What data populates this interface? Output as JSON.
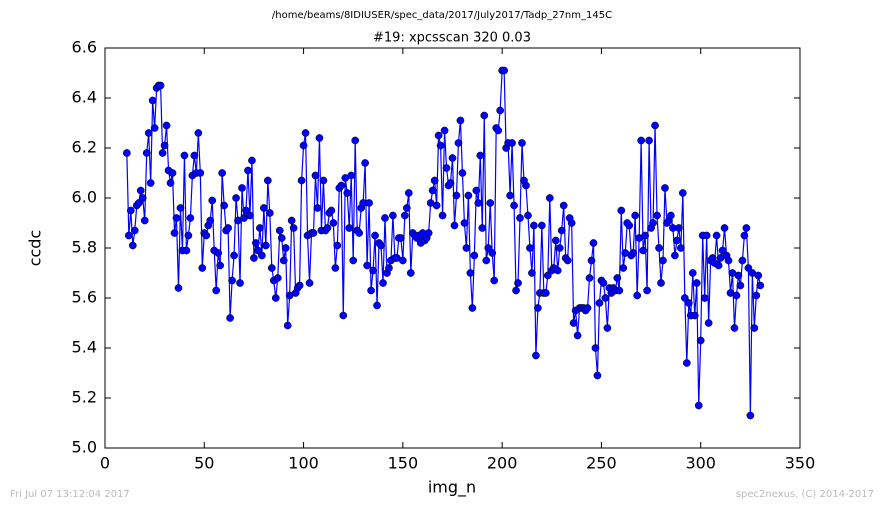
{
  "chart_data": {
    "type": "line",
    "path_title": "/home/beams/8IDIUSER/spec_data/2017/July2017/Tadp_27nm_145C",
    "title": "#19: xpcsscan 320 0.03",
    "xlabel": "img_n",
    "ylabel": "ccdc",
    "footer_left": "Fri Jul 07 13:12:04 2017",
    "footer_right": "spec2nexus, (C) 2014-2017",
    "xlim": [
      0,
      350
    ],
    "xticks": [
      0,
      50,
      100,
      150,
      200,
      250,
      300,
      350
    ],
    "ylim": [
      5.0,
      6.6
    ],
    "yticks": [
      {
        "value": 5.0,
        "label": "5.0"
      },
      5.2,
      5.4,
      5.6,
      5.8,
      {
        "value": 6.0,
        "label": "6.0"
      },
      6.2,
      6.4,
      6.6
    ],
    "series": [
      {
        "color": "#0000ff",
        "x": [
          11,
          12,
          13,
          14,
          15,
          16,
          17,
          18,
          19,
          20,
          21,
          22,
          23,
          24,
          25,
          26,
          27,
          28,
          29,
          30,
          31,
          32,
          33,
          34,
          35,
          36,
          37,
          38,
          39,
          40,
          41,
          42,
          43,
          44,
          45,
          46,
          47,
          48,
          49,
          50,
          51,
          52,
          53,
          54,
          55,
          56,
          57,
          58,
          59,
          60,
          61,
          62,
          63,
          64,
          65,
          66,
          67,
          68,
          69,
          70,
          71,
          72,
          73,
          74,
          75,
          76,
          77,
          78,
          79,
          80,
          81,
          82,
          83,
          84,
          85,
          86,
          87,
          88,
          89,
          90,
          91,
          92,
          93,
          94,
          95,
          96,
          97,
          98,
          99,
          100,
          101,
          102,
          103,
          104,
          105,
          106,
          107,
          108,
          109,
          110,
          111,
          112,
          113,
          114,
          115,
          116,
          117,
          118,
          119,
          120,
          121,
          122,
          123,
          124,
          125,
          126,
          127,
          128,
          129,
          130,
          131,
          132,
          133,
          134,
          135,
          136,
          137,
          138,
          139,
          140,
          141,
          142,
          143,
          144,
          145,
          146,
          147,
          148,
          149,
          150,
          151,
          152,
          153,
          154,
          155,
          156,
          157,
          158,
          159,
          160,
          161,
          162,
          163,
          164,
          165,
          166,
          167,
          168,
          169,
          170,
          171,
          172,
          173,
          174,
          175,
          176,
          177,
          178,
          179,
          180,
          181,
          182,
          183,
          184,
          185,
          186,
          187,
          188,
          189,
          190,
          191,
          192,
          193,
          194,
          195,
          196,
          197,
          198,
          199,
          200,
          201,
          202,
          203,
          204,
          205,
          206,
          207,
          208,
          209,
          210,
          211,
          212,
          213,
          214,
          215,
          216,
          217,
          218,
          219,
          220,
          221,
          222,
          223,
          224,
          225,
          226,
          227,
          228,
          229,
          230,
          231,
          232,
          233,
          234,
          235,
          236,
          237,
          238,
          239,
          240,
          241,
          242,
          243,
          244,
          245,
          246,
          247,
          248,
          249,
          250,
          251,
          252,
          253,
          254,
          255,
          256,
          257,
          258,
          259,
          260,
          261,
          262,
          263,
          264,
          265,
          266,
          267,
          268,
          269,
          270,
          271,
          272,
          273,
          274,
          275,
          276,
          277,
          278,
          279,
          280,
          281,
          282,
          283,
          284,
          285,
          286,
          287,
          288,
          289,
          290,
          291,
          292,
          293,
          294,
          295,
          296,
          297,
          298,
          299,
          300,
          301,
          302,
          303,
          304,
          305,
          306,
          307,
          308,
          309,
          310,
          311,
          312,
          313,
          314,
          315,
          316,
          317,
          318,
          319,
          320,
          321,
          322,
          323,
          324,
          325,
          326,
          327,
          328,
          329,
          330
        ],
        "values": [
          6.18,
          5.85,
          5.95,
          5.81,
          5.87,
          5.97,
          5.98,
          6.03,
          6.0,
          5.91,
          6.18,
          6.26,
          6.06,
          6.39,
          6.28,
          6.44,
          6.45,
          6.45,
          6.18,
          6.21,
          6.29,
          6.11,
          6.06,
          6.1,
          5.86,
          5.92,
          5.64,
          5.96,
          5.79,
          6.17,
          5.79,
          5.85,
          5.92,
          6.09,
          6.17,
          6.1,
          6.26,
          6.1,
          5.72,
          5.86,
          5.85,
          5.89,
          5.91,
          5.99,
          5.79,
          5.63,
          5.78,
          5.73,
          6.1,
          5.97,
          5.87,
          5.88,
          5.52,
          5.67,
          5.77,
          6.0,
          5.91,
          5.66,
          6.04,
          5.92,
          5.95,
          6.11,
          5.93,
          6.15,
          5.76,
          5.82,
          5.79,
          5.88,
          5.77,
          5.96,
          5.81,
          6.07,
          5.94,
          5.72,
          5.67,
          5.6,
          5.68,
          5.87,
          5.84,
          5.75,
          5.8,
          5.49,
          5.61,
          5.91,
          5.88,
          5.62,
          5.64,
          5.65,
          6.07,
          6.21,
          6.26,
          5.85,
          5.66,
          5.86,
          5.86,
          6.09,
          5.96,
          6.24,
          5.87,
          6.07,
          5.87,
          5.88,
          5.94,
          5.95,
          5.9,
          5.72,
          5.81,
          6.04,
          6.05,
          5.53,
          6.08,
          6.02,
          5.88,
          6.09,
          5.75,
          6.23,
          5.87,
          5.86,
          5.96,
          5.98,
          6.14,
          5.73,
          5.98,
          5.63,
          5.71,
          5.85,
          5.57,
          5.82,
          5.81,
          5.66,
          5.92,
          5.7,
          5.72,
          5.75,
          5.93,
          5.76,
          5.76,
          5.84,
          5.84,
          5.75,
          5.93,
          5.96,
          6.02,
          5.7,
          5.86,
          5.85,
          5.84,
          5.85,
          5.82,
          5.86,
          5.83,
          5.84,
          5.86,
          5.98,
          6.03,
          6.07,
          5.97,
          6.25,
          6.21,
          5.93,
          6.27,
          6.12,
          6.05,
          6.06,
          6.16,
          5.89,
          6.01,
          6.22,
          6.31,
          6.1,
          5.9,
          5.8,
          6.01,
          5.7,
          5.56,
          5.77,
          6.03,
          5.98,
          6.17,
          5.88,
          6.33,
          5.75,
          5.8,
          5.98,
          5.78,
          5.67,
          6.28,
          6.27,
          6.35,
          6.51,
          6.51,
          6.2,
          6.22,
          6.01,
          6.22,
          5.97,
          5.63,
          5.66,
          5.92,
          6.22,
          6.07,
          6.05,
          5.93,
          5.8,
          5.7,
          5.89,
          5.37,
          5.56,
          5.62,
          5.89,
          5.62,
          5.62,
          5.69,
          6.0,
          5.71,
          5.72,
          5.83,
          5.71,
          5.8,
          5.87,
          5.97,
          5.76,
          5.75,
          5.92,
          5.9,
          5.5,
          5.55,
          5.45,
          5.56,
          5.56,
          5.56,
          5.55,
          5.56,
          5.68,
          5.75,
          5.82,
          5.4,
          5.29,
          5.58,
          5.67,
          5.66,
          5.6,
          5.48,
          5.64,
          5.62,
          5.64,
          5.63,
          5.68,
          5.63,
          5.95,
          5.72,
          5.78,
          5.9,
          5.89,
          5.77,
          5.78,
          5.93,
          5.61,
          5.84,
          6.23,
          5.79,
          5.85,
          5.63,
          6.23,
          5.88,
          5.9,
          6.29,
          5.93,
          5.8,
          5.66,
          5.75,
          6.04,
          5.9,
          5.91,
          5.93,
          5.88,
          5.77,
          5.83,
          5.88,
          5.8,
          6.02,
          5.6,
          5.34,
          5.58,
          5.53,
          5.7,
          5.53,
          5.66,
          5.17,
          5.43,
          5.85,
          5.6,
          5.85,
          5.5,
          5.75,
          5.76,
          5.74,
          5.85,
          5.73,
          5.76,
          5.79,
          5.88,
          5.77,
          5.75,
          5.62,
          5.7,
          5.48,
          5.61,
          5.69,
          5.65,
          5.75,
          5.85,
          5.88,
          5.72,
          5.13,
          5.7,
          5.48,
          5.61,
          5.69,
          5.65
        ]
      }
    ]
  }
}
